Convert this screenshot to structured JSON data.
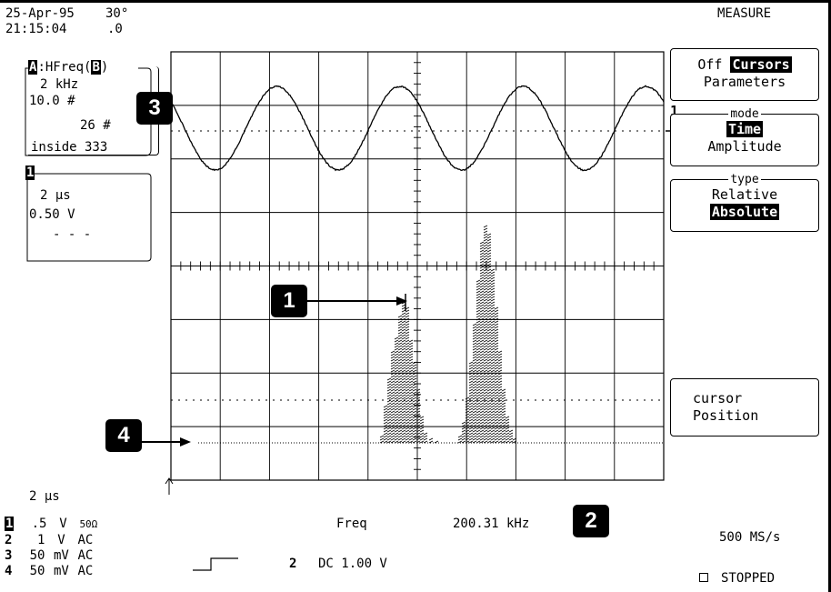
{
  "status": {
    "date": "25-Apr-95",
    "temp": "30°",
    "time": "21:15:04",
    "tenths": ".0"
  },
  "histogram_box": {
    "label_a": "A",
    "label_fn": ":HFreq(",
    "label_b": "B",
    "label_close": ")",
    "line1": "2 kHz",
    "line2": "10.0 #",
    "line3": "26 #",
    "line4": "inside 333"
  },
  "channel_box": {
    "num": "1",
    "line1": "2 μs",
    "line2": "0.50 V",
    "line3": "- - -"
  },
  "menu": {
    "title": "MEASURE",
    "cursors_off": "Off",
    "cursors_on": "Cursors",
    "parameters": "Parameters",
    "mode_label": "mode",
    "mode_selected": "Time",
    "mode_alt": "Amplitude",
    "type_label": "type",
    "type_alt": "Relative",
    "type_selected": "Absolute",
    "cursor_line1": "cursor",
    "cursor_line2": "Position"
  },
  "trace_marker": "1",
  "callouts": [
    "1",
    "2",
    "3",
    "4"
  ],
  "bottom": {
    "timebase": "2 μs",
    "channels": [
      {
        "num": "1",
        "volts": ".5",
        "unit": "V",
        "coupling": "50Ω"
      },
      {
        "num": "2",
        "volts": "1",
        "unit": "V",
        "coupling": "AC"
      },
      {
        "num": "3",
        "volts": "50",
        "unit": "mV",
        "coupling": "AC"
      },
      {
        "num": "4",
        "volts": "50",
        "unit": "mV",
        "coupling": "AC"
      }
    ],
    "param_name": "Freq",
    "param_value": "200.31 kHz",
    "trigger_src": "2",
    "trigger_desc": "DC 1.00 V",
    "sample_rate": "500 MS/s",
    "acq_state": "STOPPED"
  },
  "colors": {
    "foreground": "#000000",
    "background": "#ffffff"
  }
}
